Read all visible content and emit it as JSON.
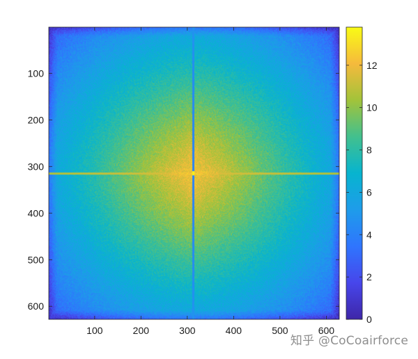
{
  "chart_data": {
    "type": "heatmap",
    "title": "",
    "xlabel": "",
    "ylabel": "",
    "x_ticks": [
      100,
      200,
      300,
      400,
      500,
      600
    ],
    "y_ticks": [
      100,
      200,
      300,
      400,
      500,
      600
    ],
    "xlim": [
      1,
      628
    ],
    "ylim": [
      1,
      628
    ],
    "y_reversed": true,
    "colormap": "parula",
    "colorbar": {
      "ticks": [
        0,
        2,
        4,
        6,
        8,
        10,
        12
      ],
      "range": [
        0,
        13.8
      ]
    },
    "peak": {
      "x": 312,
      "y": 314,
      "value": 13.8
    },
    "edge_value": 4.5,
    "center_lines": {
      "vertical_x": 312,
      "horizontal_y": 314
    },
    "description_values": {
      "corner_min": 2.5,
      "center_max": 13.8
    }
  },
  "watermark": "知乎 @CoCoairforce"
}
